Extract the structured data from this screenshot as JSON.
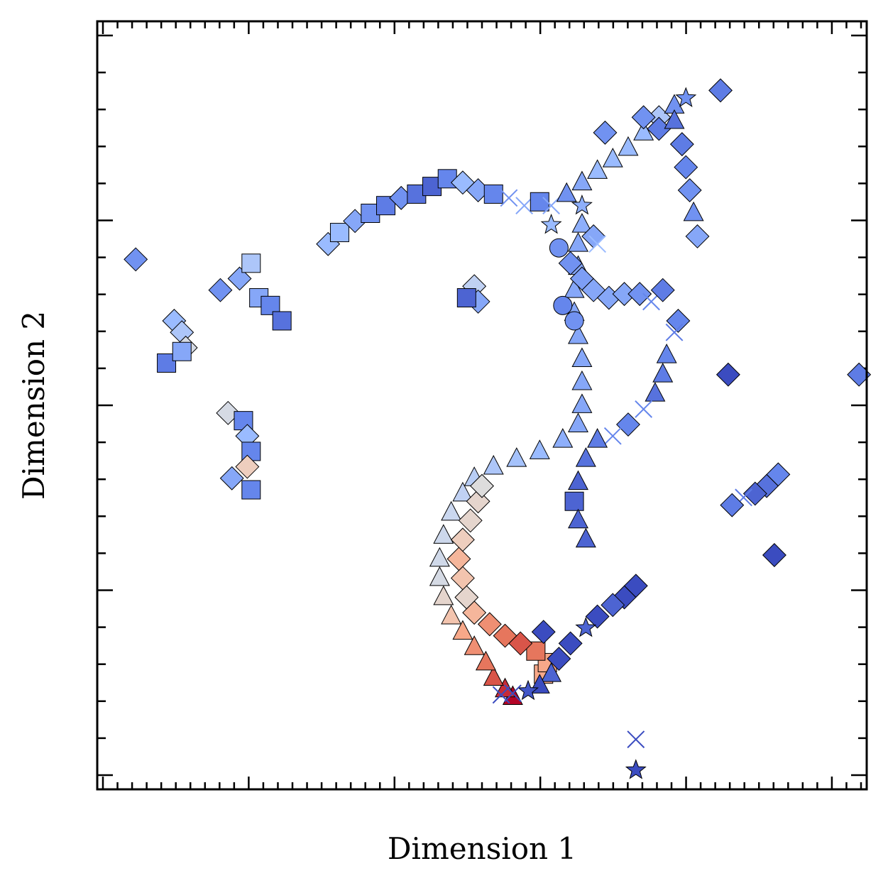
{
  "chart_data": {
    "type": "scatter",
    "xlabel": "Dimension 1",
    "ylabel": "Dimension 2",
    "xlim": [
      0,
      100
    ],
    "ylim": [
      0,
      100
    ],
    "tick_labels": "none",
    "grid": false,
    "legend": "none",
    "color_encoding": "continuous value mapped with a diverging blue-to-red (coolwarm) colormap, range [0, 1]",
    "colormap": [
      "#3b4cc0",
      "#6788ee",
      "#9abbff",
      "#c9d7f0",
      "#dddcdc",
      "#f2cbb7",
      "#f7a889",
      "#e26952",
      "#b40426"
    ],
    "shape_encoding": [
      "diamond",
      "square",
      "triangle",
      "star",
      "circle",
      "x"
    ],
    "series": [
      {
        "points": [
          {
            "x": 54,
            "y": 12,
            "c": 1.0,
            "m": "triangle"
          },
          {
            "x": 53,
            "y": 13,
            "c": 0.95,
            "m": "triangle"
          },
          {
            "x": 51.5,
            "y": 14.5,
            "c": 0.9,
            "m": "triangle"
          },
          {
            "x": 50.5,
            "y": 16.5,
            "c": 0.85,
            "m": "triangle"
          },
          {
            "x": 49,
            "y": 18.5,
            "c": 0.8,
            "m": "triangle"
          },
          {
            "x": 47.5,
            "y": 20.5,
            "c": 0.75,
            "m": "triangle"
          },
          {
            "x": 46,
            "y": 22.5,
            "c": 0.65,
            "m": "triangle"
          },
          {
            "x": 45,
            "y": 25,
            "c": 0.55,
            "m": "triangle"
          },
          {
            "x": 44.5,
            "y": 27.5,
            "c": 0.45,
            "m": "triangle"
          },
          {
            "x": 44.5,
            "y": 30,
            "c": 0.42,
            "m": "triangle"
          },
          {
            "x": 45,
            "y": 33,
            "c": 0.4,
            "m": "triangle"
          },
          {
            "x": 46,
            "y": 36,
            "c": 0.38,
            "m": "triangle"
          },
          {
            "x": 47.5,
            "y": 38.5,
            "c": 0.35,
            "m": "triangle"
          },
          {
            "x": 49,
            "y": 40.5,
            "c": 0.33,
            "m": "triangle"
          },
          {
            "x": 51.5,
            "y": 42,
            "c": 0.3,
            "m": "triangle"
          },
          {
            "x": 54.5,
            "y": 43,
            "c": 0.28,
            "m": "triangle"
          },
          {
            "x": 57.5,
            "y": 44,
            "c": 0.25,
            "m": "triangle"
          },
          {
            "x": 60.5,
            "y": 45.5,
            "c": 0.22,
            "m": "triangle"
          },
          {
            "x": 62.5,
            "y": 47.5,
            "c": 0.2,
            "m": "triangle"
          },
          {
            "x": 63,
            "y": 50,
            "c": 0.2,
            "m": "triangle"
          },
          {
            "x": 63,
            "y": 53,
            "c": 0.2,
            "m": "triangle"
          },
          {
            "x": 63,
            "y": 56,
            "c": 0.2,
            "m": "triangle"
          },
          {
            "x": 62.5,
            "y": 59,
            "c": 0.2,
            "m": "triangle"
          },
          {
            "x": 62,
            "y": 62,
            "c": 0.2,
            "m": "triangle"
          },
          {
            "x": 62,
            "y": 65,
            "c": 0.2,
            "m": "triangle"
          },
          {
            "x": 62.5,
            "y": 68,
            "c": 0.2,
            "m": "triangle"
          },
          {
            "x": 62.5,
            "y": 71,
            "c": 0.2,
            "m": "triangle"
          },
          {
            "x": 63,
            "y": 73.5,
            "c": 0.22,
            "m": "triangle"
          },
          {
            "x": 63,
            "y": 76,
            "c": 0.22,
            "m": "star"
          },
          {
            "x": 58,
            "y": 15,
            "c": 0.75,
            "m": "square"
          },
          {
            "x": 58.5,
            "y": 16.5,
            "c": 0.75,
            "m": "square"
          },
          {
            "x": 57,
            "y": 18,
            "c": 0.85,
            "m": "square"
          },
          {
            "x": 55,
            "y": 19,
            "c": 0.9,
            "m": "diamond"
          },
          {
            "x": 53,
            "y": 20,
            "c": 0.85,
            "m": "diamond"
          },
          {
            "x": 51,
            "y": 21.5,
            "c": 0.8,
            "m": "diamond"
          },
          {
            "x": 49,
            "y": 23,
            "c": 0.7,
            "m": "diamond"
          },
          {
            "x": 48,
            "y": 25,
            "c": 0.55,
            "m": "diamond"
          },
          {
            "x": 47.5,
            "y": 27.5,
            "c": 0.65,
            "m": "diamond"
          },
          {
            "x": 47,
            "y": 30,
            "c": 0.7,
            "m": "diamond"
          },
          {
            "x": 47.5,
            "y": 32.5,
            "c": 0.6,
            "m": "diamond"
          },
          {
            "x": 48.5,
            "y": 35,
            "c": 0.55,
            "m": "diamond"
          },
          {
            "x": 49.5,
            "y": 37.5,
            "c": 0.55,
            "m": "diamond"
          },
          {
            "x": 50,
            "y": 39.5,
            "c": 0.5,
            "m": "diamond"
          },
          {
            "x": 30,
            "y": 71,
            "c": 0.25,
            "m": "diamond"
          },
          {
            "x": 31.5,
            "y": 72.5,
            "c": 0.25,
            "m": "square"
          },
          {
            "x": 33.5,
            "y": 74,
            "c": 0.2,
            "m": "diamond"
          },
          {
            "x": 35.5,
            "y": 75,
            "c": 0.15,
            "m": "square"
          },
          {
            "x": 37.5,
            "y": 76,
            "c": 0.1,
            "m": "square"
          },
          {
            "x": 39.5,
            "y": 77,
            "c": 0.15,
            "m": "diamond"
          },
          {
            "x": 41.5,
            "y": 77.5,
            "c": 0.08,
            "m": "square"
          },
          {
            "x": 43.5,
            "y": 78.5,
            "c": 0.05,
            "m": "square"
          },
          {
            "x": 45.5,
            "y": 79.5,
            "c": 0.12,
            "m": "square"
          },
          {
            "x": 47.5,
            "y": 79,
            "c": 0.25,
            "m": "diamond"
          },
          {
            "x": 49.5,
            "y": 78,
            "c": 0.2,
            "m": "diamond"
          },
          {
            "x": 51.5,
            "y": 77.5,
            "c": 0.12,
            "m": "square"
          },
          {
            "x": 53.5,
            "y": 77,
            "c": 0.15,
            "m": "x"
          },
          {
            "x": 55.5,
            "y": 76,
            "c": 0.2,
            "m": "x"
          },
          {
            "x": 57.5,
            "y": 76.5,
            "c": 0.12,
            "m": "square"
          },
          {
            "x": 59,
            "y": 76,
            "c": 0.2,
            "m": "x"
          },
          {
            "x": 61,
            "y": 77.5,
            "c": 0.15,
            "m": "triangle"
          },
          {
            "x": 63,
            "y": 79,
            "c": 0.2,
            "m": "triangle"
          },
          {
            "x": 65,
            "y": 80.5,
            "c": 0.25,
            "m": "triangle"
          },
          {
            "x": 67,
            "y": 82,
            "c": 0.25,
            "m": "triangle"
          },
          {
            "x": 69,
            "y": 83.5,
            "c": 0.25,
            "m": "triangle"
          },
          {
            "x": 71,
            "y": 85.5,
            "c": 0.25,
            "m": "triangle"
          },
          {
            "x": 73,
            "y": 87.5,
            "c": 0.3,
            "m": "diamond"
          },
          {
            "x": 75,
            "y": 89,
            "c": 0.15,
            "m": "triangle"
          },
          {
            "x": 76.5,
            "y": 90,
            "c": 0.15,
            "m": "star"
          },
          {
            "x": 59,
            "y": 73.5,
            "c": 0.25,
            "m": "star"
          },
          {
            "x": 64.5,
            "y": 72,
            "c": 0.2,
            "m": "diamond"
          },
          {
            "x": 65,
            "y": 71,
            "c": 0.25,
            "m": "x"
          },
          {
            "x": 66,
            "y": 85.5,
            "c": 0.15,
            "m": "diamond"
          },
          {
            "x": 5,
            "y": 69,
            "c": 0.15,
            "m": "diamond"
          },
          {
            "x": 16,
            "y": 65,
            "c": 0.15,
            "m": "diamond"
          },
          {
            "x": 18.5,
            "y": 66.5,
            "c": 0.2,
            "m": "diamond"
          },
          {
            "x": 20,
            "y": 68.5,
            "c": 0.3,
            "m": "square"
          },
          {
            "x": 21,
            "y": 64,
            "c": 0.2,
            "m": "square"
          },
          {
            "x": 22.5,
            "y": 63,
            "c": 0.12,
            "m": "square"
          },
          {
            "x": 24,
            "y": 61,
            "c": 0.08,
            "m": "square"
          },
          {
            "x": 10,
            "y": 61,
            "c": 0.25,
            "m": "diamond"
          },
          {
            "x": 11,
            "y": 59.5,
            "c": 0.3,
            "m": "diamond"
          },
          {
            "x": 11.5,
            "y": 57.5,
            "c": 0.45,
            "m": "diamond"
          },
          {
            "x": 9,
            "y": 55.5,
            "c": 0.1,
            "m": "square"
          },
          {
            "x": 11,
            "y": 57,
            "c": 0.2,
            "m": "square"
          },
          {
            "x": 17,
            "y": 49,
            "c": 0.45,
            "m": "diamond"
          },
          {
            "x": 19,
            "y": 48,
            "c": 0.12,
            "m": "square"
          },
          {
            "x": 19.5,
            "y": 46,
            "c": 0.25,
            "m": "diamond"
          },
          {
            "x": 20,
            "y": 44,
            "c": 0.12,
            "m": "square"
          },
          {
            "x": 19.5,
            "y": 42,
            "c": 0.6,
            "m": "diamond"
          },
          {
            "x": 17.5,
            "y": 40.5,
            "c": 0.2,
            "m": "diamond"
          },
          {
            "x": 20,
            "y": 39,
            "c": 0.12,
            "m": "square"
          },
          {
            "x": 49,
            "y": 65.5,
            "c": 0.35,
            "m": "diamond"
          },
          {
            "x": 49.5,
            "y": 63.5,
            "c": 0.2,
            "m": "diamond"
          },
          {
            "x": 48,
            "y": 64,
            "c": 0.05,
            "m": "square"
          },
          {
            "x": 60.5,
            "y": 63,
            "c": 0.12,
            "m": "circle"
          },
          {
            "x": 62,
            "y": 61,
            "c": 0.15,
            "m": "circle"
          },
          {
            "x": 71,
            "y": 87.5,
            "c": 0.15,
            "m": "diamond"
          },
          {
            "x": 73,
            "y": 86,
            "c": 0.1,
            "m": "diamond"
          },
          {
            "x": 75,
            "y": 87,
            "c": 0.08,
            "m": "triangle"
          },
          {
            "x": 76,
            "y": 84,
            "c": 0.1,
            "m": "diamond"
          },
          {
            "x": 76.5,
            "y": 81,
            "c": 0.12,
            "m": "diamond"
          },
          {
            "x": 77,
            "y": 78,
            "c": 0.15,
            "m": "diamond"
          },
          {
            "x": 77.5,
            "y": 75,
            "c": 0.15,
            "m": "triangle"
          },
          {
            "x": 78,
            "y": 72,
            "c": 0.2,
            "m": "diamond"
          },
          {
            "x": 81,
            "y": 91,
            "c": 0.1,
            "m": "diamond"
          },
          {
            "x": 60,
            "y": 70.5,
            "c": 0.15,
            "m": "circle"
          },
          {
            "x": 61.5,
            "y": 68.5,
            "c": 0.15,
            "m": "diamond"
          },
          {
            "x": 63,
            "y": 66.5,
            "c": 0.18,
            "m": "diamond"
          },
          {
            "x": 64.5,
            "y": 65,
            "c": 0.2,
            "m": "diamond"
          },
          {
            "x": 66.5,
            "y": 64,
            "c": 0.2,
            "m": "diamond"
          },
          {
            "x": 68.5,
            "y": 64.5,
            "c": 0.2,
            "m": "diamond"
          },
          {
            "x": 70.5,
            "y": 64.5,
            "c": 0.15,
            "m": "diamond"
          },
          {
            "x": 72,
            "y": 63.5,
            "c": 0.12,
            "m": "x"
          },
          {
            "x": 73.5,
            "y": 65,
            "c": 0.1,
            "m": "diamond"
          },
          {
            "x": 75.5,
            "y": 61,
            "c": 0.12,
            "m": "diamond"
          },
          {
            "x": 75,
            "y": 59.5,
            "c": 0.1,
            "m": "x"
          },
          {
            "x": 82,
            "y": 54,
            "c": 0.0,
            "m": "diamond"
          },
          {
            "x": 74,
            "y": 56.5,
            "c": 0.12,
            "m": "triangle"
          },
          {
            "x": 73.5,
            "y": 54,
            "c": 0.1,
            "m": "triangle"
          },
          {
            "x": 72.5,
            "y": 51.5,
            "c": 0.08,
            "m": "triangle"
          },
          {
            "x": 71,
            "y": 49.5,
            "c": 0.12,
            "m": "x"
          },
          {
            "x": 69,
            "y": 47.5,
            "c": 0.12,
            "m": "diamond"
          },
          {
            "x": 67,
            "y": 46,
            "c": 0.12,
            "m": "x"
          },
          {
            "x": 65,
            "y": 45.5,
            "c": 0.1,
            "m": "triangle"
          },
          {
            "x": 63.5,
            "y": 43,
            "c": 0.08,
            "m": "triangle"
          },
          {
            "x": 62.5,
            "y": 40,
            "c": 0.05,
            "m": "triangle"
          },
          {
            "x": 62,
            "y": 37.5,
            "c": 0.05,
            "m": "square"
          },
          {
            "x": 62.5,
            "y": 35,
            "c": 0.05,
            "m": "triangle"
          },
          {
            "x": 63.5,
            "y": 32.5,
            "c": 0.05,
            "m": "triangle"
          },
          {
            "x": 99,
            "y": 54,
            "c": 0.1,
            "m": "diamond"
          },
          {
            "x": 88.5,
            "y": 41,
            "c": 0.12,
            "m": "diamond"
          },
          {
            "x": 87,
            "y": 39.5,
            "c": 0.08,
            "m": "diamond"
          },
          {
            "x": 85.5,
            "y": 38.5,
            "c": 0.05,
            "m": "diamond"
          },
          {
            "x": 84,
            "y": 38,
            "c": 0.1,
            "m": "x"
          },
          {
            "x": 82.5,
            "y": 37,
            "c": 0.1,
            "m": "diamond"
          },
          {
            "x": 88,
            "y": 30.5,
            "c": 0.0,
            "m": "diamond"
          },
          {
            "x": 70,
            "y": 26.5,
            "c": 0.0,
            "m": "diamond"
          },
          {
            "x": 68.5,
            "y": 25,
            "c": 0.0,
            "m": "diamond"
          },
          {
            "x": 67,
            "y": 24,
            "c": 0.05,
            "m": "diamond"
          },
          {
            "x": 65,
            "y": 22.5,
            "c": 0.0,
            "m": "diamond"
          },
          {
            "x": 63.5,
            "y": 21,
            "c": 0.05,
            "m": "star"
          },
          {
            "x": 61.5,
            "y": 19,
            "c": 0.0,
            "m": "diamond"
          },
          {
            "x": 60,
            "y": 17,
            "c": 0.0,
            "m": "diamond"
          },
          {
            "x": 59,
            "y": 15,
            "c": 0.05,
            "m": "triangle"
          },
          {
            "x": 57.5,
            "y": 13.5,
            "c": 0.0,
            "m": "triangle"
          },
          {
            "x": 56,
            "y": 12.8,
            "c": 0.02,
            "m": "star"
          },
          {
            "x": 54,
            "y": 12.5,
            "c": 0.0,
            "m": "x"
          },
          {
            "x": 52.5,
            "y": 12.3,
            "c": 0.0,
            "m": "x"
          },
          {
            "x": 58,
            "y": 20.5,
            "c": 0.0,
            "m": "diamond"
          },
          {
            "x": 70,
            "y": 6.5,
            "c": 0.0,
            "m": "x"
          },
          {
            "x": 70,
            "y": 2.5,
            "c": 0.0,
            "m": "star"
          }
        ]
      }
    ]
  }
}
